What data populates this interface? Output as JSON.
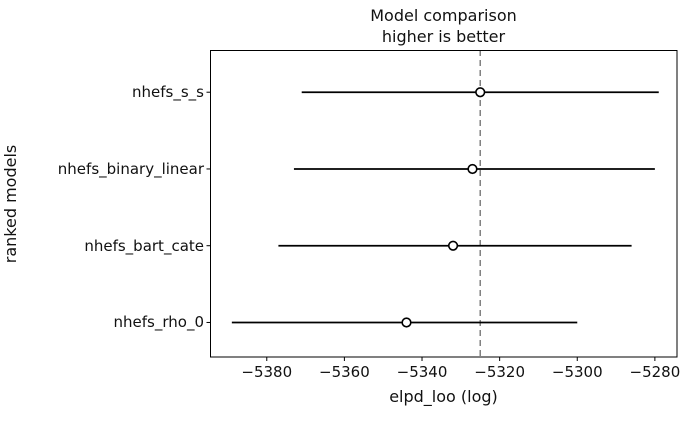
{
  "figure": {
    "title_line1": "Model comparison",
    "title_line2": "higher is better"
  },
  "chart_data": {
    "type": "scatter",
    "title": "Model comparison\nhigher is better",
    "xlabel": "elpd_loo (log)",
    "ylabel": "ranked models",
    "xlim": [
      -5394.5,
      -5274.3
    ],
    "x_ticks": [
      -5380,
      -5360,
      -5340,
      -5320,
      -5300,
      -5280
    ],
    "grid": false,
    "legend": "none",
    "reference_line_x": -5325,
    "series": [
      {
        "name": "nhefs_s_s",
        "elpd_loo": -5325,
        "ci_low": -5371,
        "ci_high": -5279
      },
      {
        "name": "nhefs_binary_linear",
        "elpd_loo": -5327,
        "ci_low": -5373,
        "ci_high": -5280
      },
      {
        "name": "nhefs_bart_cate",
        "elpd_loo": -5332,
        "ci_low": -5377,
        "ci_high": -5286
      },
      {
        "name": "nhefs_rho_0",
        "elpd_loo": -5344,
        "ci_low": -5389,
        "ci_high": -5300
      }
    ],
    "colors": {
      "errorbar": "#000000",
      "marker_edge": "#000000",
      "marker_fill": "#ffffff",
      "reference_line": "#808080",
      "spine": "#000000",
      "text": "#111111"
    }
  }
}
